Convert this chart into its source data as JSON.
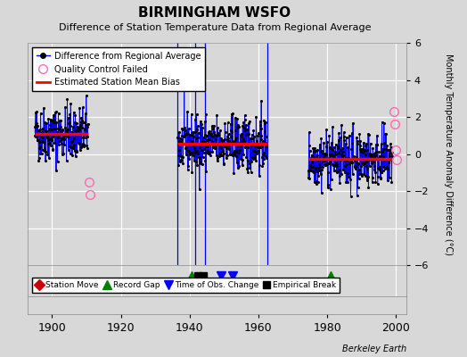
{
  "title": "BIRMINGHAM WSFO",
  "subtitle": "Difference of Station Temperature Data from Regional Average",
  "ylabel": "Monthly Temperature Anomaly Difference (°C)",
  "xlim": [
    1893,
    2003
  ],
  "ylim": [
    -6,
    6
  ],
  "yticks": [
    -6,
    -4,
    -2,
    0,
    2,
    4,
    6
  ],
  "xticks": [
    1900,
    1920,
    1940,
    1960,
    1980,
    2000
  ],
  "background_color": "#d8d8d8",
  "grid_color": "#ffffff",
  "periods": [
    {
      "start": 1895.0,
      "end": 1910.5,
      "mean": 1.1
    },
    {
      "start": 1936.5,
      "end": 1962.5,
      "mean": 0.55
    },
    {
      "start": 1974.5,
      "end": 1999.0,
      "mean": -0.25
    }
  ],
  "qc_failed": [
    {
      "year": 1910.8,
      "value": -1.5
    },
    {
      "year": 1911.1,
      "value": -2.2
    },
    {
      "year": 1999.3,
      "value": 2.3
    },
    {
      "year": 1999.6,
      "value": 1.6
    },
    {
      "year": 1999.9,
      "value": 0.2
    },
    {
      "year": 2000.1,
      "value": -0.3
    }
  ],
  "vertical_lines": [
    1936.5,
    1941.5,
    1944.5,
    1962.5
  ],
  "bottom_markers": {
    "record_gaps": [
      1940.5,
      1981.0
    ],
    "empirical_breaks": [
      1942.5,
      1944.0
    ],
    "time_of_obs": [
      1949.0,
      1952.5
    ],
    "station_moves": []
  },
  "data_color": "#0000ff",
  "qc_color": "#ff69b4",
  "bias_color": "#ff0000",
  "dot_color": "#000000",
  "seed": 42,
  "noise": 0.75
}
